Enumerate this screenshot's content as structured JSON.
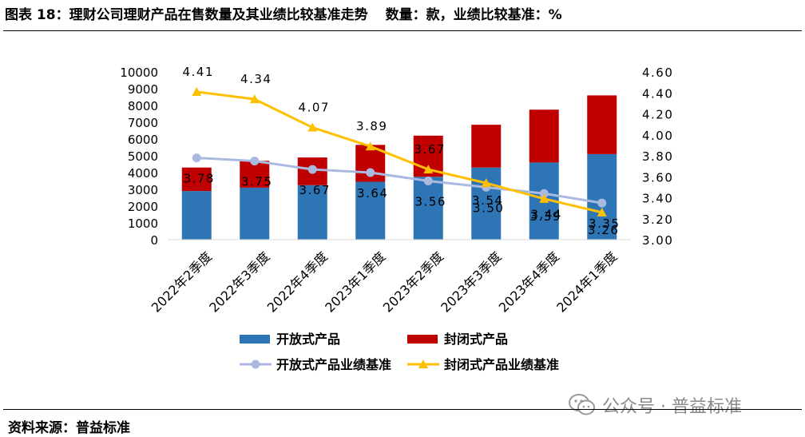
{
  "header": {
    "title": "图表 18：理财公司理财产品在售数量及其业绩比较基准走势",
    "units": "数量：款，业绩比较基准：%"
  },
  "footer": {
    "source": "资料来源：普益标准"
  },
  "watermark": {
    "text": "公众号 · 普益标准"
  },
  "colors": {
    "open_bar": "#2e75b6",
    "closed_bar": "#c00000",
    "open_line": "#a9b9e0",
    "closed_line": "#ffc000"
  },
  "chart_data": {
    "type": "bar",
    "stacked": true,
    "categories": [
      "2022年2季度",
      "2022年3季度",
      "2022年4季度",
      "2023年1季度",
      "2023年2季度",
      "2023年3季度",
      "2023年4季度",
      "2024年1季度"
    ],
    "series": [
      {
        "name": "开放式产品",
        "kind": "bar",
        "axis": "left",
        "values": [
          2900,
          3100,
          3250,
          3450,
          3750,
          4300,
          4600,
          5100
        ]
      },
      {
        "name": "封闭式产品",
        "kind": "bar",
        "axis": "left",
        "values": [
          1400,
          1600,
          1650,
          2200,
          2450,
          2550,
          3150,
          3500
        ]
      },
      {
        "name": "开放式产品业绩基准",
        "kind": "line",
        "axis": "right",
        "marker": "circle",
        "values": [
          3.78,
          3.75,
          3.67,
          3.64,
          3.56,
          3.5,
          3.44,
          3.35
        ],
        "labels": [
          "3.78",
          "3.75",
          "3.67",
          "3.64",
          "3.56",
          "3.50",
          "3.44",
          "3.35"
        ]
      },
      {
        "name": "封闭式产品业绩基准",
        "kind": "line",
        "axis": "right",
        "marker": "triangle",
        "values": [
          4.41,
          4.34,
          4.07,
          3.89,
          3.67,
          3.54,
          3.39,
          3.26
        ],
        "labels": [
          "4.41",
          "4.34",
          "4.07",
          "3.89",
          "3.67",
          "3.54",
          "3.39",
          "3.26"
        ]
      }
    ],
    "y_left": {
      "min": 0,
      "max": 10000,
      "ticks": [
        "0",
        "1000",
        "2000",
        "3000",
        "4000",
        "5000",
        "6000",
        "7000",
        "8000",
        "9000",
        "10000"
      ]
    },
    "y_right": {
      "min": 3.0,
      "max": 4.6,
      "ticks": [
        "3.00",
        "3.20",
        "3.40",
        "3.60",
        "3.80",
        "4.00",
        "4.20",
        "4.40",
        "4.60"
      ]
    },
    "legend": [
      "开放式产品",
      "封闭式产品",
      "开放式产品业绩基准",
      "封闭式产品业绩基准"
    ],
    "legend_position": "bottom",
    "grid": false
  }
}
